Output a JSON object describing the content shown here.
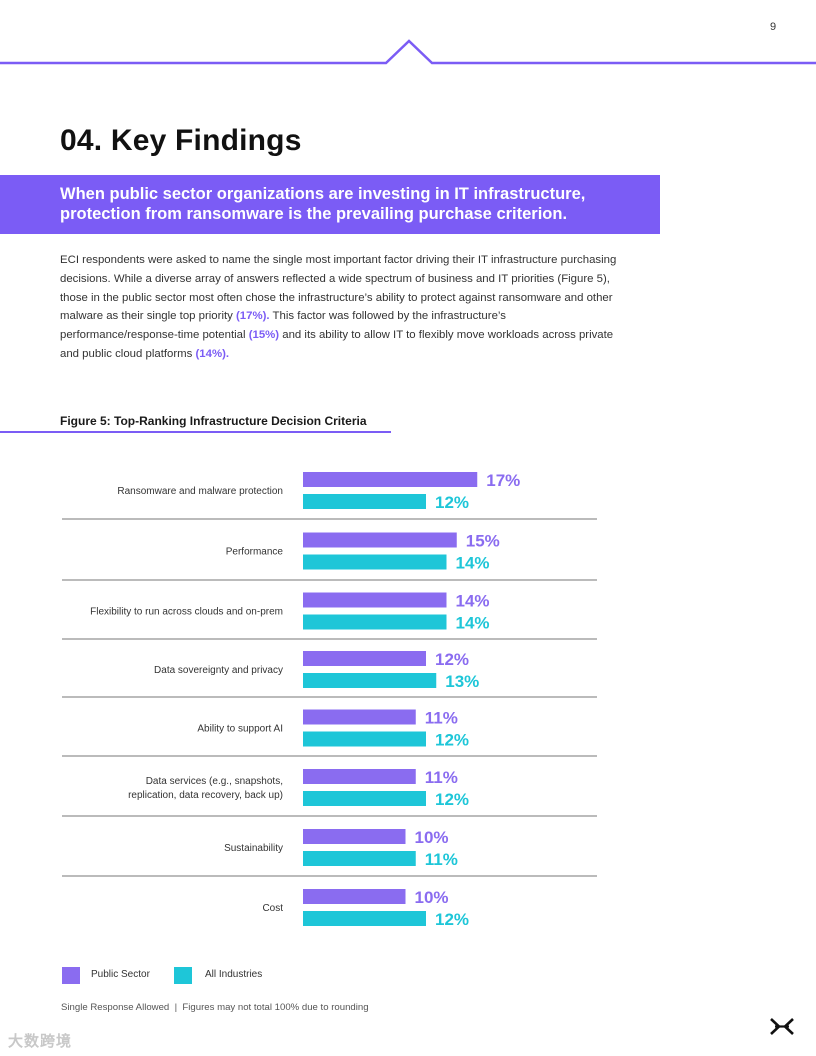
{
  "page": {
    "number": "9"
  },
  "section": {
    "title": "04. Key Findings"
  },
  "banner": {
    "line1": "When public sector organizations are investing in IT infrastructure,",
    "line2": "protection from ransomware is the prevailing purchase criterion."
  },
  "intro": {
    "part1": "ECI respondents were asked to name the single most important factor driving their IT infrastructure purchasing decisions. While a diverse array of answers reflected a wide spectrum of business and IT priorities (Figure 5), those in the public sector most often chose the infrastructure’s ability to protect against ransomware and other malware as their single top priority ",
    "hl1": "(17%).",
    "part2": " This factor was followed by the infrastructure’s performance/response-time potential ",
    "hl2": "(15%)",
    "part3": " and its ability to allow IT to flexibly move workloads across private and public cloud platforms ",
    "hl3": "(14%)."
  },
  "figure": {
    "title": "Figure 5: Top-Ranking Infrastructure Decision Criteria"
  },
  "chart_data": {
    "type": "bar",
    "orientation": "horizontal",
    "title": "Figure 5: Top-Ranking Infrastructure Decision Criteria",
    "categories": [
      [
        "Ransomware and malware protection"
      ],
      [
        "Performance"
      ],
      [
        "Flexibility to run across clouds and on-prem"
      ],
      [
        "Data sovereignty and privacy"
      ],
      [
        "Ability to support AI"
      ],
      [
        "Data services (e.g., snapshots,",
        "replication, data recovery, back up)"
      ],
      [
        "Sustainability"
      ],
      [
        "Cost"
      ]
    ],
    "series": [
      {
        "name": "Public Sector",
        "color": "#8a6cf0",
        "values": [
          17,
          15,
          14,
          12,
          11,
          11,
          10,
          10
        ]
      },
      {
        "name": "All Industries",
        "color": "#1ec6d8",
        "values": [
          12,
          14,
          14,
          13,
          12,
          12,
          11,
          12
        ]
      }
    ],
    "value_suffix": "%",
    "grid": false,
    "legend_position": "bottom-left"
  },
  "footnote": "Single Response Allowed  |  Figures may not total 100% due to rounding",
  "colors": {
    "accent": "#7b5cf5",
    "public": "#8a6cf0",
    "all": "#1ec6d8"
  },
  "icons": {
    "logo": "x-logo-icon"
  },
  "watermark": "大数跨境"
}
